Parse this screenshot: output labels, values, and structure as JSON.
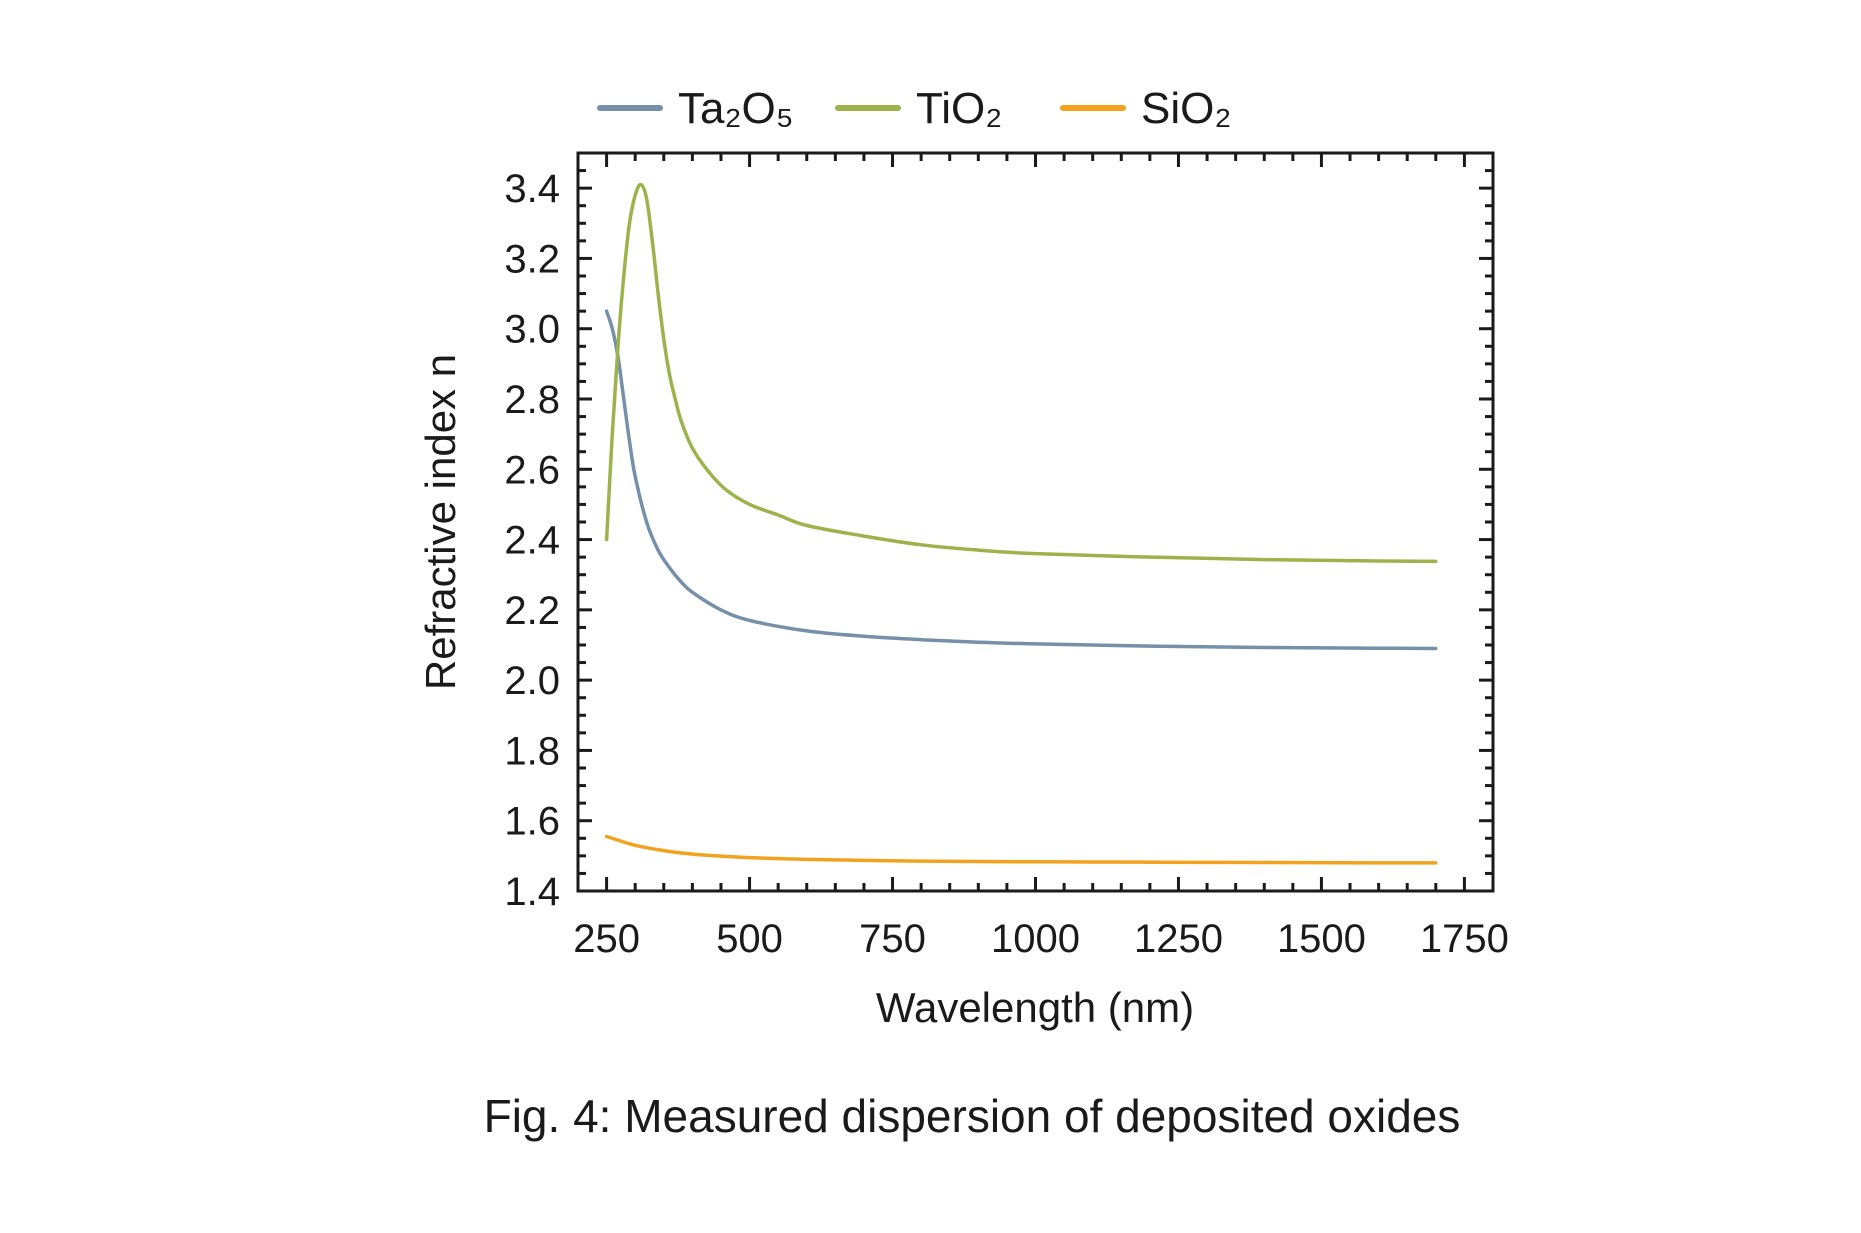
{
  "chart_data": {
    "type": "line",
    "xlabel": "Wavelength (nm)",
    "ylabel": "Refractive index n",
    "xlim": [
      200,
      1800
    ],
    "ylim": [
      1.4,
      3.5
    ],
    "x_ticks": [
      250,
      500,
      750,
      1000,
      1250,
      1500,
      1750
    ],
    "y_ticks": [
      1.4,
      1.6,
      1.8,
      2.0,
      2.2,
      2.4,
      2.6,
      2.8,
      3.0,
      3.2,
      3.4
    ],
    "y_tick_labels": [
      "1.4",
      "1.6",
      "1.8",
      "2.0",
      "2.2",
      "2.4",
      "2.6",
      "2.8",
      "3.0",
      "3.2",
      "3.4"
    ],
    "legend_position": "top",
    "grid": false,
    "series": [
      {
        "name": "Ta₂O₅",
        "color": "#7590a8",
        "x": [
          250,
          260,
          270,
          280,
          290,
          300,
          320,
          340,
          360,
          380,
          400,
          450,
          500,
          600,
          700,
          800,
          900,
          1000,
          1200,
          1400,
          1600,
          1700
        ],
        "y": [
          3.05,
          3.0,
          2.92,
          2.8,
          2.68,
          2.58,
          2.45,
          2.37,
          2.32,
          2.28,
          2.25,
          2.2,
          2.17,
          2.14,
          2.125,
          2.115,
          2.108,
          2.103,
          2.097,
          2.093,
          2.091,
          2.09
        ]
      },
      {
        "name": "TiO₂",
        "color": "#9cb34b",
        "x": [
          250,
          260,
          270,
          280,
          290,
          300,
          310,
          320,
          330,
          340,
          350,
          360,
          370,
          380,
          400,
          430,
          460,
          500,
          550,
          600,
          700,
          800,
          900,
          1000,
          1200,
          1400,
          1600,
          1700
        ],
        "y": [
          2.4,
          2.7,
          2.95,
          3.15,
          3.3,
          3.38,
          3.41,
          3.37,
          3.25,
          3.1,
          2.97,
          2.87,
          2.8,
          2.74,
          2.66,
          2.59,
          2.54,
          2.5,
          2.47,
          2.44,
          2.41,
          2.385,
          2.37,
          2.36,
          2.35,
          2.343,
          2.339,
          2.338
        ]
      },
      {
        "name": "SiO₂",
        "color": "#f2a21d",
        "x": [
          250,
          300,
          350,
          400,
          500,
          600,
          700,
          800,
          1000,
          1200,
          1400,
          1600,
          1700
        ],
        "y": [
          1.555,
          1.53,
          1.515,
          1.505,
          1.495,
          1.49,
          1.487,
          1.485,
          1.483,
          1.482,
          1.481,
          1.48,
          1.48
        ]
      }
    ]
  },
  "caption": "Fig. 4: Measured dispersion of deposited oxides"
}
